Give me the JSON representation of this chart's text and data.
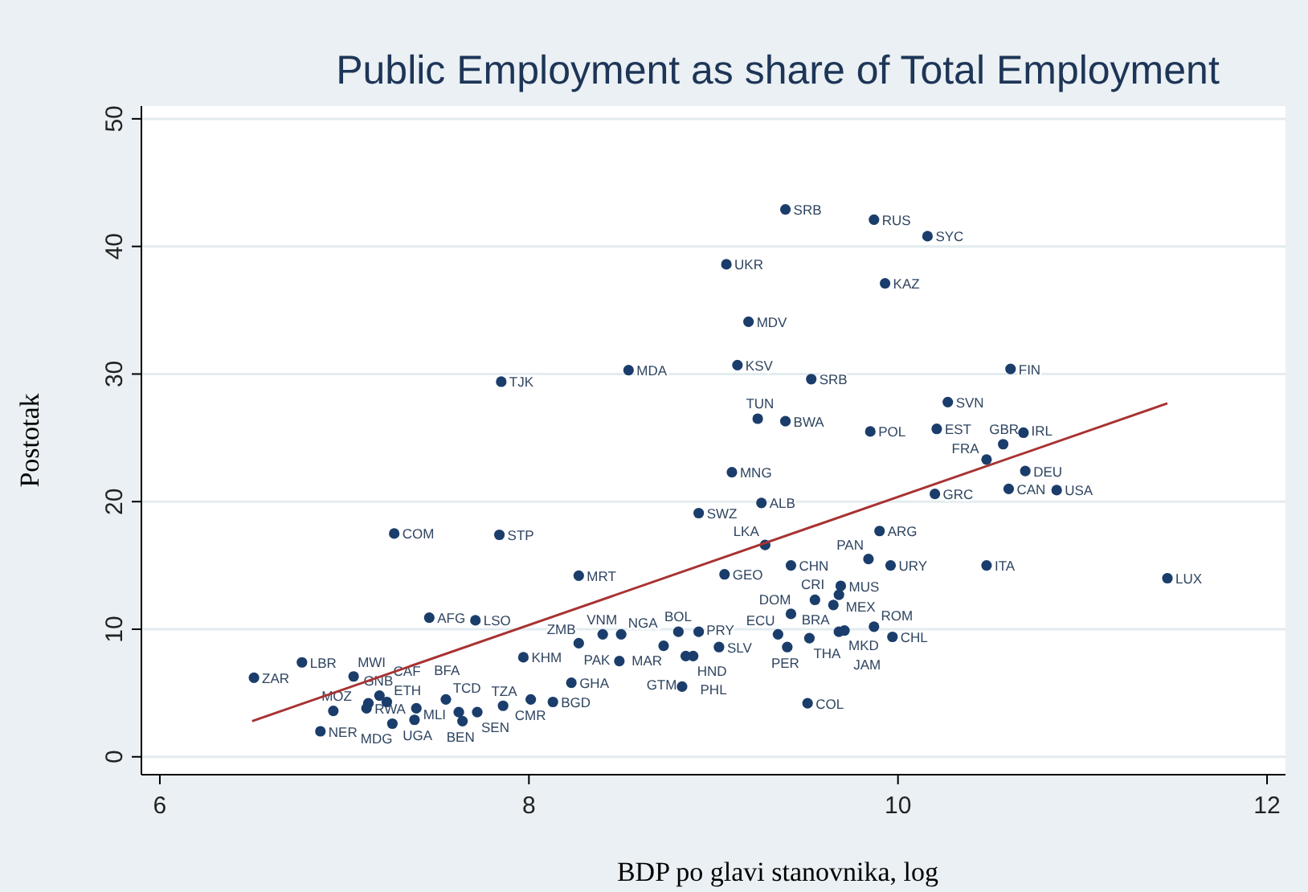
{
  "chart_data": {
    "type": "scatter",
    "title": "Public Employment as share of Total Employment",
    "xlabel": "BDP po glavi stanovnika, log",
    "ylabel": "Postotak",
    "xlim": [
      5.9,
      12.1
    ],
    "ylim": [
      -1.4,
      51
    ],
    "xticks": [
      6,
      8,
      10,
      12
    ],
    "yticks": [
      0,
      10,
      20,
      30,
      40,
      50
    ],
    "grid": "y",
    "marker": "circle",
    "series": [
      {
        "type": "scatter",
        "color": "#1a3d6b",
        "x": [
          9.39,
          9.87,
          10.16,
          9.07,
          9.93,
          9.19,
          10.61,
          9.13,
          8.54,
          7.85,
          9.53,
          10.27,
          9.24,
          9.39,
          9.85,
          10.21,
          10.68,
          10.57,
          10.48,
          10.69,
          9.1,
          10.2,
          10.6,
          10.86,
          9.26,
          8.92,
          9.9,
          7.27,
          7.84,
          9.28,
          9.84,
          9.96,
          10.48,
          9.42,
          9.06,
          8.27,
          11.46,
          9.69,
          9.68,
          9.55,
          9.65,
          9.42,
          8.4,
          8.5,
          8.27,
          8.81,
          8.92,
          8.73,
          8.85,
          8.89,
          9.03,
          8.49,
          7.97,
          8.23,
          8.83,
          9.51,
          9.35,
          9.4,
          9.52,
          9.68,
          9.71,
          9.87,
          9.97,
          7.46,
          7.71,
          6.77,
          6.51,
          7.05,
          6.87,
          6.94,
          7.13,
          7.19,
          7.23,
          7.12,
          7.26,
          7.38,
          7.39,
          7.55,
          7.62,
          7.64,
          7.72,
          7.86,
          8.01,
          8.13
        ],
        "values": [
          42.9,
          42.1,
          40.8,
          38.6,
          37.1,
          34.1,
          30.4,
          30.7,
          30.3,
          29.4,
          29.6,
          27.8,
          26.5,
          26.3,
          25.5,
          25.7,
          25.4,
          24.5,
          23.3,
          22.4,
          22.3,
          20.6,
          21.0,
          20.9,
          19.9,
          19.1,
          17.7,
          17.5,
          17.4,
          16.6,
          15.5,
          15.0,
          15.0,
          15.0,
          14.3,
          14.2,
          14.0,
          13.4,
          12.7,
          12.3,
          11.9,
          11.2,
          9.6,
          9.6,
          8.9,
          9.8,
          9.8,
          8.7,
          7.9,
          7.9,
          8.6,
          7.5,
          7.8,
          5.8,
          5.5,
          4.2,
          9.6,
          8.6,
          9.3,
          9.8,
          9.9,
          10.2,
          9.4,
          10.9,
          10.7,
          7.4,
          6.2,
          6.3,
          2.0,
          3.6,
          4.2,
          4.8,
          4.3,
          3.8,
          2.6,
          2.9,
          3.8,
          4.5,
          3.5,
          2.8,
          3.5,
          4.0,
          4.5,
          4.3
        ],
        "value_labels": [
          "SRB",
          "RUS",
          "SYC",
          "UKR",
          "KAZ",
          "MDV",
          "FIN",
          "KSV",
          "MDA",
          "TJK",
          "SRB",
          "SVN",
          "TUN",
          "BWA",
          "POL",
          "EST",
          "IRL",
          "GBR",
          "FRA",
          "DEU",
          "MNG",
          "GRC",
          "CAN",
          "USA",
          "ALB",
          "SWZ",
          "ARG",
          "COM",
          "STP",
          "LKA",
          "PAN",
          "URY",
          "ITA",
          "CHN",
          "GEO",
          "MRT",
          "LUX",
          "MUS",
          "MEX",
          "CRI",
          "BRA",
          "DOM",
          "VNM",
          "NGA",
          "ZMB",
          "BOL",
          "PRY",
          "MAR",
          "PHL",
          "HND",
          "SLV",
          "PAK",
          "KHM",
          "GHA",
          "GTM",
          "COL",
          "ECU",
          "PER",
          "THA",
          "JAM",
          "MKD",
          "ROM",
          "CHL",
          "AFG",
          "LSO",
          "LBR",
          "ZAR",
          "MWI",
          "NER",
          "MOZ",
          "CAF",
          "GNB",
          "ETH",
          "RWA",
          "MDG",
          "UGA",
          "BFA",
          "TCD",
          "MLI",
          "BEN",
          "SEN",
          "TZA",
          "CMR",
          "BGD"
        ]
      },
      {
        "type": "line",
        "marker": "none",
        "color": "#a83232",
        "x": [
          6.5,
          11.46
        ],
        "values": [
          2.8,
          27.7
        ]
      }
    ]
  }
}
